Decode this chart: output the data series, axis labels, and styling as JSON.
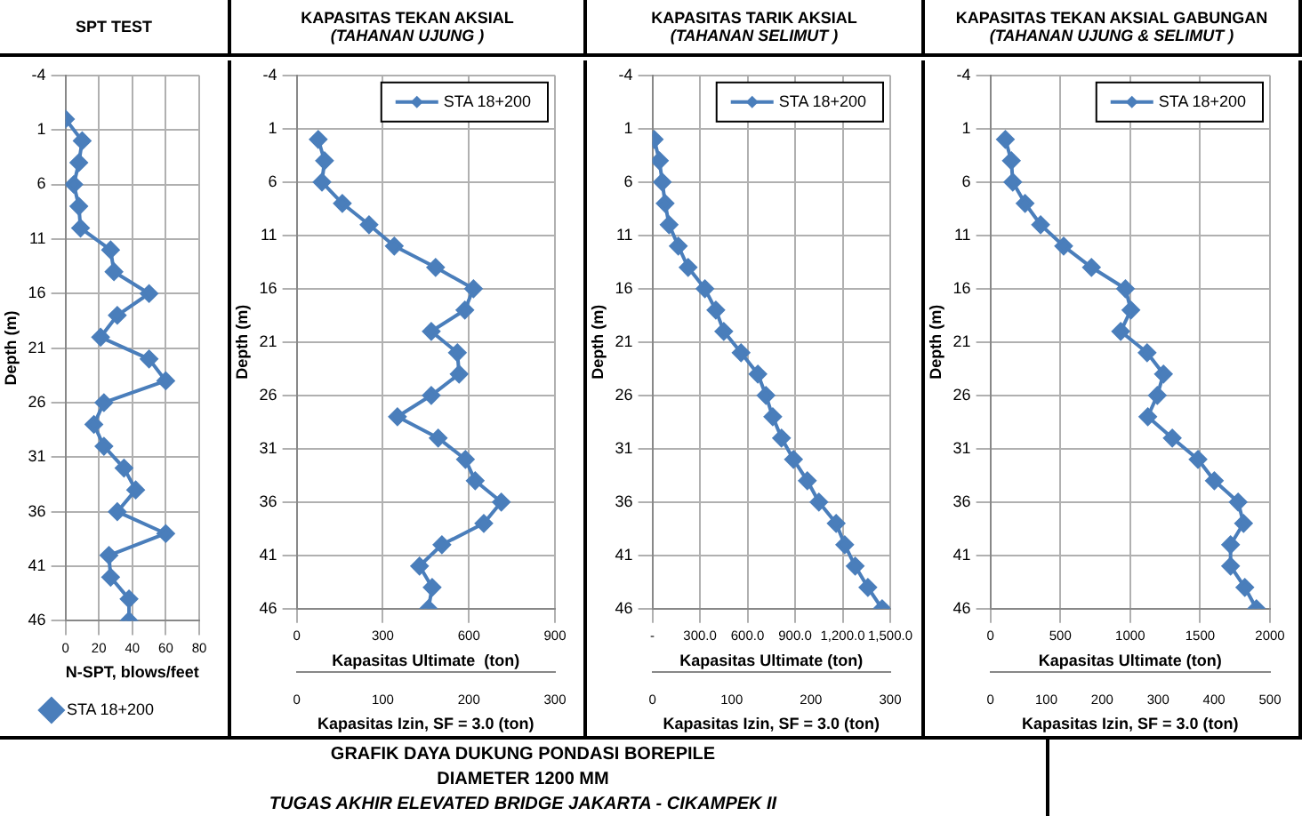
{
  "chart_data": [
    {
      "type": "line",
      "title": "SPT TEST",
      "xlabel": "N-SPT, blows/feet",
      "ylabel": "Depth (m)",
      "xlim": [
        0,
        80
      ],
      "xticks": [
        0,
        20,
        40,
        60,
        80
      ],
      "ylim": [
        46,
        -4
      ],
      "yticks": [
        -4,
        1,
        6,
        11,
        16,
        21,
        26,
        31,
        36,
        41,
        46
      ],
      "grid": true,
      "legend": "bottom",
      "marker": "diamond",
      "series": [
        {
          "name": "STA 18+200",
          "color": "#4a7ebb",
          "x": [
            0,
            10,
            8,
            5,
            8,
            9,
            27,
            29,
            50,
            31,
            21,
            50,
            60,
            23,
            17,
            23,
            35,
            42,
            31,
            60,
            26,
            27,
            38,
            38
          ],
          "values": [
            0,
            2,
            4,
            6,
            8,
            10,
            12,
            14,
            16,
            18,
            20,
            22,
            24,
            26,
            28,
            30,
            32,
            34,
            36,
            38,
            40,
            42,
            44,
            46
          ]
        }
      ]
    },
    {
      "type": "line",
      "title": "KAPASITAS TEKAN AKSIAL",
      "subtitle": "(TAHANAN UJUNG )",
      "xlabel": "Kapasitas Ultimate  (ton)",
      "ylabel": "Depth (m)",
      "x2label": "Kapasitas Izin, SF = 3.0 (ton)",
      "xlim": [
        0,
        900
      ],
      "xticks": [
        0,
        300,
        600,
        900
      ],
      "x2lim": [
        0,
        300
      ],
      "x2ticks": [
        0,
        100,
        200,
        300
      ],
      "ylim": [
        46,
        -4
      ],
      "yticks": [
        -4,
        1,
        6,
        11,
        16,
        21,
        26,
        31,
        36,
        41,
        46
      ],
      "grid": true,
      "legend": "top right",
      "marker": "diamond",
      "series": [
        {
          "name": "STA 18+200",
          "color": "#4a7ebb",
          "x": [
            75,
            97,
            88,
            159,
            252,
            340,
            484,
            616,
            586,
            469,
            560,
            566,
            469,
            351,
            493,
            588,
            622,
            713,
            652,
            506,
            428,
            472,
            459
          ],
          "values": [
            2,
            4,
            6,
            8,
            10,
            12,
            14,
            16,
            18,
            20,
            22,
            24,
            26,
            28,
            30,
            32,
            34,
            36,
            38,
            40,
            42,
            44,
            46
          ]
        }
      ]
    },
    {
      "type": "line",
      "title": "KAPASITAS TARIK AKSIAL",
      "subtitle": "(TAHANAN SELIMUT )",
      "xlabel": "Kapasitas Ultimate (ton)",
      "ylabel": "Depth (m)",
      "x2label": "Kapasitas Izin, SF = 3.0 (ton)",
      "xlim": [
        0,
        1500
      ],
      "xticks": [
        {
          "value": 0,
          "label": "-"
        },
        {
          "value": 300,
          "label": "300.0"
        },
        {
          "value": 600,
          "label": "600.0"
        },
        {
          "value": 900,
          "label": "900.0"
        },
        {
          "value": 1200,
          "label": "1,200.0"
        },
        {
          "value": 1500,
          "label": "1,500.0"
        }
      ],
      "x2lim": [
        0,
        300
      ],
      "x2ticks": [
        0,
        100,
        200,
        300
      ],
      "ylim": [
        46,
        -4
      ],
      "yticks": [
        -4,
        1,
        6,
        11,
        16,
        21,
        26,
        31,
        36,
        41,
        46
      ],
      "grid": true,
      "legend": "top right",
      "marker": "diamond",
      "series": [
        {
          "name": "STA 18+200",
          "color": "#4a7ebb",
          "x": [
            11,
            44,
            62,
            80,
            105,
            163,
            225,
            331,
            400,
            450,
            559,
            665,
            716,
            759,
            814,
            890,
            977,
            1050,
            1159,
            1213,
            1279,
            1359,
            1449
          ],
          "values": [
            2,
            4,
            6,
            8,
            10,
            12,
            14,
            16,
            18,
            20,
            22,
            24,
            26,
            28,
            30,
            32,
            34,
            36,
            38,
            40,
            42,
            44,
            46
          ]
        }
      ]
    },
    {
      "type": "line",
      "title": "KAPASITAS TEKAN AKSIAL GABUNGAN",
      "subtitle": "(TAHANAN UJUNG & SELIMUT )",
      "xlabel": "Kapasitas Ultimate (ton)",
      "ylabel": "Depth (m)",
      "x2label": "Kapasitas Izin, SF = 3.0 (ton)",
      "xlim": [
        0,
        2000
      ],
      "xticks": [
        0,
        500,
        1000,
        1500,
        2000
      ],
      "x2lim": [
        0,
        500
      ],
      "x2ticks": [
        0,
        100,
        200,
        300,
        400,
        500
      ],
      "ylim": [
        46,
        -4
      ],
      "yticks": [
        -4,
        1,
        6,
        11,
        16,
        21,
        26,
        31,
        36,
        41,
        46
      ],
      "grid": true,
      "legend": "top right",
      "marker": "diamond",
      "series": [
        {
          "name": "STA 18+200",
          "color": "#4a7ebb",
          "x": [
            107,
            150,
            160,
            248,
            359,
            524,
            723,
            966,
            1005,
            932,
            1121,
            1238,
            1194,
            1126,
            1301,
            1485,
            1602,
            1772,
            1811,
            1718,
            1718,
            1820,
            1903
          ],
          "values": [
            2,
            4,
            6,
            8,
            10,
            12,
            14,
            16,
            18,
            20,
            22,
            24,
            26,
            28,
            30,
            32,
            34,
            36,
            38,
            40,
            42,
            44,
            46
          ]
        }
      ]
    },
    {
      "type": "other",
      "title": "GRAFIK DAYA DUKUNG PONDASI BOREPILE",
      "annotations": [
        "DIAMETER 1200 MM",
        "TUGAS AKHIR ELEVATED BRIDGE JAKARTA - CIKAMPEK II"
      ]
    }
  ]
}
